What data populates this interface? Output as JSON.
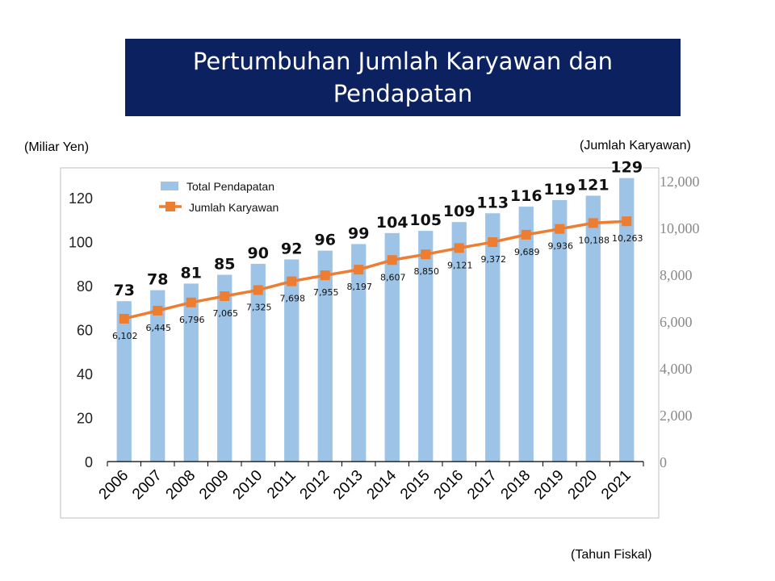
{
  "title": "Pertumbuhan Jumlah Karyawan dan Pendapatan",
  "left_unit": "(Miliar Yen)",
  "right_unit": "(Jumlah Karyawan)",
  "x_unit": "(Tahun Fiskal)",
  "colors": {
    "title_bg": "#0c2260",
    "bar": "#9dc3e6",
    "line": "#ed7d31"
  },
  "chart_data": {
    "type": "bar+line",
    "categories": [
      "2006",
      "2007",
      "2008",
      "2009",
      "2010",
      "2011",
      "2012",
      "2013",
      "2014",
      "2015",
      "2016",
      "2017",
      "2018",
      "2019",
      "2020",
      "2021"
    ],
    "series": [
      {
        "name": "Total  Pendapatan",
        "type": "bar",
        "axis": "left",
        "values": [
          73,
          78,
          81,
          85,
          90,
          92,
          96,
          99,
          104,
          105,
          109,
          113,
          116,
          119,
          121,
          129
        ]
      },
      {
        "name": "Jumlah Karyawan",
        "type": "line",
        "axis": "right",
        "values": [
          6102,
          6445,
          6796,
          7065,
          7325,
          7698,
          7955,
          8197,
          8607,
          8850,
          9121,
          9372,
          9689,
          9936,
          10188,
          10263
        ],
        "labels": [
          "6,102",
          "6,445",
          "6,796",
          "7,065",
          "7,325",
          "7,698",
          "7,955",
          "8,197",
          "8,607",
          "8,850",
          "9,121",
          "9,372",
          "9,689",
          "9,936",
          "10,188",
          "10,263"
        ]
      }
    ],
    "left_ylim": [
      0,
      130
    ],
    "left_ticks": [
      "0",
      "20",
      "40",
      "60",
      "80",
      "100",
      "120"
    ],
    "right_ylim": [
      0,
      12200
    ],
    "right_ticks": [
      "0",
      "2,000",
      "4,000",
      "6,000",
      "8,000",
      "10,000",
      "12,000"
    ],
    "legend": "top-left",
    "grid": false
  }
}
